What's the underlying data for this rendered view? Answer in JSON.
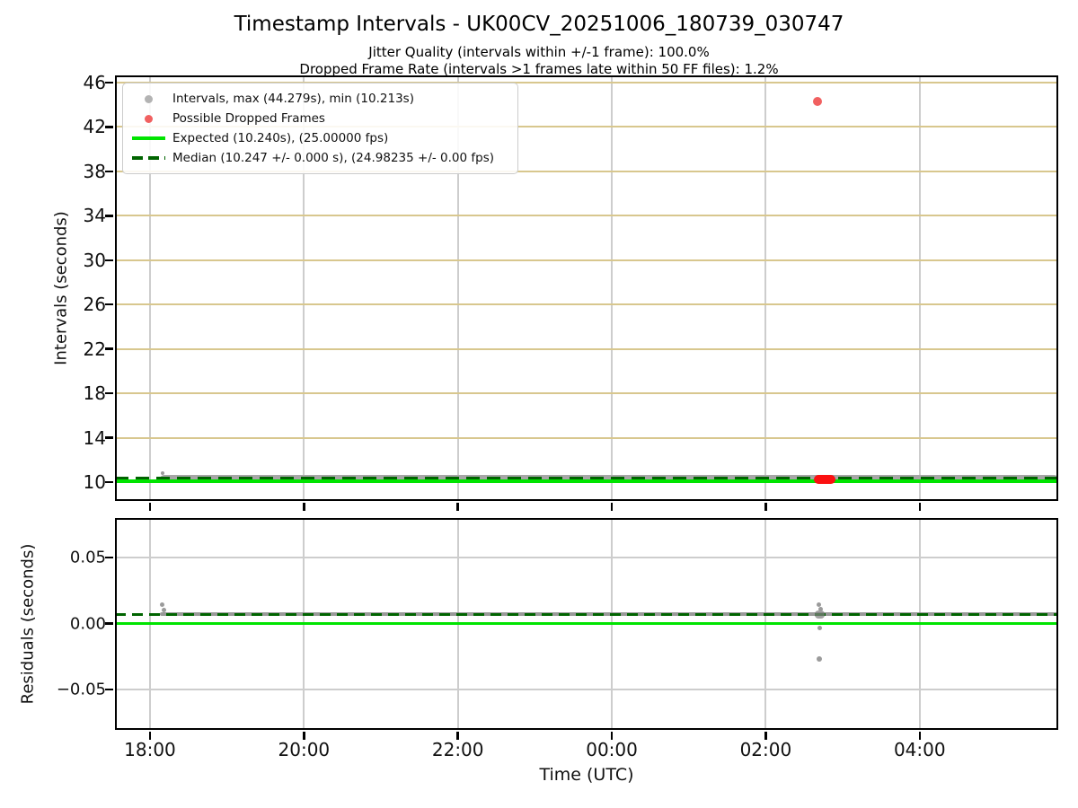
{
  "header": {
    "title": "Timestamp Intervals - UK00CV_20251006_180739_030747",
    "subtitle_jitter": "Jitter Quality (intervals within +/-1 frame): 100.0%",
    "subtitle_dropped": "Dropped Frame Rate (intervals >1 frames late within 50 FF files): 1.2%"
  },
  "legend": {
    "items": [
      {
        "label": "Intervals, max (44.279s), min (10.213s)",
        "marker": "gray-dot"
      },
      {
        "label": "Possible Dropped Frames",
        "marker": "red-dot"
      },
      {
        "label": "Expected (10.240s), (25.00000 fps)",
        "marker": "green-solid-line"
      },
      {
        "label": "Median (10.247 +/- 0.000 s), (24.98235 +/- 0.00 fps)",
        "marker": "dark-green-dashed-line"
      }
    ]
  },
  "theme": {
    "background": "#ffffff",
    "spine": "#000000",
    "grid_tan": "#d8c78e",
    "grid_gray": "#cdcdcd",
    "band_gray": "#a6a6a6",
    "band_gray2": "rgba(128,128,128,0.8)",
    "smear_gray": "rgba(128,128,128,0.72)",
    "dot_gray": "#9b9b9b",
    "legend_dot_gray": "#b3b3b3",
    "red": "#fb1010",
    "red_soft": "#f16060",
    "lime": "#00e400",
    "darkgreen": "#006400",
    "text": "#111111"
  },
  "chart_data": [
    {
      "id": "intervals",
      "type": "scatter",
      "ylabel": "Intervals (seconds)",
      "ylim": [
        8.3,
        46.65
      ],
      "yticks": [
        {
          "v": 10,
          "label": "10"
        },
        {
          "v": 14,
          "label": "14"
        },
        {
          "v": 18,
          "label": "18"
        },
        {
          "v": 22,
          "label": "22"
        },
        {
          "v": 26,
          "label": "26"
        },
        {
          "v": 30,
          "label": "30"
        },
        {
          "v": 34,
          "label": "34"
        },
        {
          "v": 38,
          "label": "38"
        },
        {
          "v": 42,
          "label": "42"
        },
        {
          "v": 46,
          "label": "46"
        }
      ],
      "xlim_hours": [
        17.545,
        29.8
      ],
      "xticks": [
        {
          "h": 18,
          "label": "18:00"
        },
        {
          "h": 20,
          "label": "20:00"
        },
        {
          "h": 22,
          "label": "22:00"
        },
        {
          "h": 24,
          "label": "00:00"
        },
        {
          "h": 26,
          "label": "02:00"
        },
        {
          "h": 28,
          "label": "04:00"
        }
      ],
      "show_x_labels": false,
      "grid_y_color": "grid_tan",
      "grid_x_color": "grid_gray",
      "stats": {
        "max_interval_s": 44.279,
        "min_interval_s": 10.213,
        "expected_s": 10.24,
        "expected_fps": 25.0,
        "median_s": 10.247,
        "median_err_s": 0.0,
        "median_fps": 24.98235,
        "median_err_fps": 0.0,
        "jitter_quality_pct": 100.0,
        "dropped_frame_rate_pct": 1.2,
        "ff_files": 50
      },
      "series": [
        {
          "name": "intervals-band",
          "kind": "band",
          "t0": 18.13,
          "t1": 29.8,
          "v": 10.247,
          "h": 9,
          "r": 5,
          "color": "band_gray"
        },
        {
          "name": "interval-start-dot",
          "kind": "dot",
          "t": 18.16,
          "v": 10.8,
          "r": 2,
          "color": "dot_gray"
        },
        {
          "name": "expected-line",
          "kind": "hline",
          "v": 10.24,
          "h": 4,
          "dy": 2,
          "color": "lime"
        },
        {
          "name": "median-line",
          "kind": "hline",
          "v": 10.247,
          "h": 3.5,
          "dy": -1.5,
          "dash": 15,
          "gap": 8,
          "color": "darkgreen"
        },
        {
          "name": "dropped-frames-cluster",
          "kind": "band",
          "t0": 26.62,
          "t1": 26.9,
          "v": 10.25,
          "h": 10,
          "r": 5,
          "color": "red"
        },
        {
          "name": "max-interval-point",
          "kind": "dot",
          "t": 26.67,
          "v": 44.279,
          "r": 5,
          "color": "red_soft"
        }
      ]
    },
    {
      "id": "residuals",
      "type": "scatter",
      "ylabel": "Residuals (seconds)",
      "xlabel": "Time (UTC)",
      "ylim": [
        -0.0805,
        0.08
      ],
      "yticks": [
        {
          "v": 0.05,
          "label": "0.05"
        },
        {
          "v": 0,
          "label": "0.00"
        },
        {
          "v": -0.05,
          "label": "−0.05"
        }
      ],
      "xlim_hours": [
        17.545,
        29.8
      ],
      "xticks": [
        {
          "h": 18,
          "label": "18:00"
        },
        {
          "h": 20,
          "label": "20:00"
        },
        {
          "h": 22,
          "label": "22:00"
        },
        {
          "h": 24,
          "label": "00:00"
        },
        {
          "h": 26,
          "label": "02:00"
        },
        {
          "h": 28,
          "label": "04:00"
        }
      ],
      "show_x_labels": true,
      "grid_y_color": "grid_gray",
      "grid_x_color": "grid_gray",
      "series": [
        {
          "name": "residuals-band",
          "kind": "band",
          "t0": 18.13,
          "t1": 29.8,
          "v": 0.007,
          "h": 4,
          "r": 2,
          "color": "band_gray2"
        },
        {
          "name": "residual-start-dot",
          "kind": "dot",
          "t": 18.16,
          "v": 0.0145,
          "r": 2.5,
          "color": "dot_gray"
        },
        {
          "name": "residual-start-dot",
          "kind": "dot",
          "t": 18.18,
          "v": 0.0105,
          "r": 2.5,
          "color": "dot_gray"
        },
        {
          "name": "expected-line",
          "kind": "hline",
          "v": 0.0,
          "h": 3.5,
          "color": "lime"
        },
        {
          "name": "median-line",
          "kind": "hline",
          "v": 0.007,
          "h": 3.5,
          "dash": 12,
          "gap": 7,
          "color": "darkgreen"
        },
        {
          "name": "residual-cluster-smear",
          "kind": "band",
          "t0": 26.64,
          "t1": 26.76,
          "v": 0.007,
          "h": 9,
          "r": 4,
          "color": "smear_gray"
        },
        {
          "name": "residual-dot",
          "kind": "dot",
          "t": 26.69,
          "v": 0.0145,
          "r": 2.5,
          "color": "dot_gray"
        },
        {
          "name": "residual-dot",
          "kind": "dot",
          "t": 26.71,
          "v": 0.011,
          "r": 2.5,
          "color": "dot_gray"
        },
        {
          "name": "residual-dot",
          "kind": "dot",
          "t": 26.7,
          "v": -0.0035,
          "r": 2.5,
          "color": "dot_gray"
        },
        {
          "name": "residual-dot",
          "kind": "dot",
          "t": 26.7,
          "v": -0.027,
          "r": 3,
          "color": "dot_gray"
        }
      ]
    }
  ]
}
